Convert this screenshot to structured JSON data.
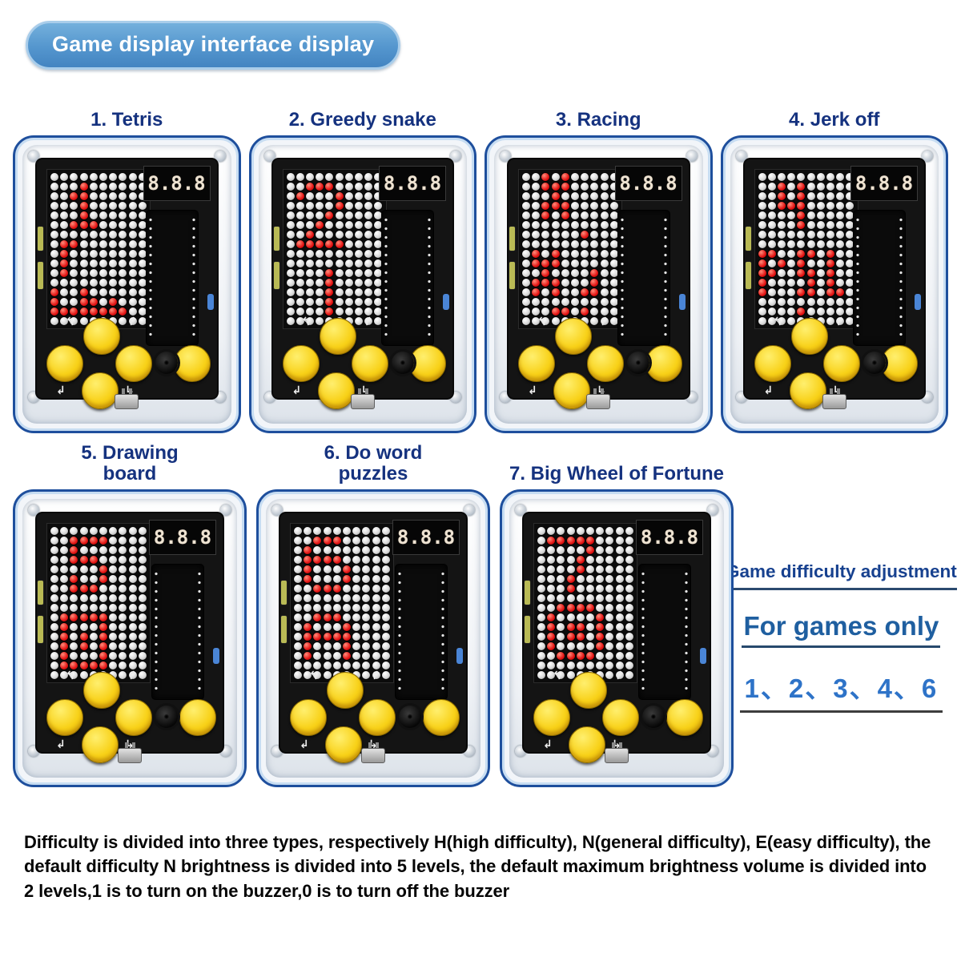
{
  "title_banner": {
    "label": "Game display interface display"
  },
  "games": [
    {
      "label": "1. Tetris",
      "display": "8.8.8",
      "matrix": [
        "..........",
        "...X......",
        "..XX......",
        "...X......",
        "...X......",
        "..XXX.....",
        "..........",
        ".XX.......",
        ".X........",
        ".X........",
        ".X........",
        "..........",
        "X..X......",
        "X..XX.X...",
        "XXXXXXXX..",
        ".........."
      ]
    },
    {
      "label": "2. Greedy snake",
      "display": "8.8.8",
      "matrix": [
        "..........",
        "..XXX.....",
        ".X...X....",
        ".....X....",
        "....X.....",
        "...X......",
        "..X.......",
        ".XXXXX....",
        "..........",
        "..........",
        "....X.....",
        "....X.....",
        "....X.....",
        "....X.....",
        "....X.....",
        ".........."
      ]
    },
    {
      "label": "3. Racing",
      "display": "8.8.8",
      "matrix": [
        "..X.X.....",
        "..XXX.....",
        "...X......",
        "..XXX.....",
        "..X.X.....",
        "..........",
        "......X...",
        "..........",
        ".X.X......",
        ".XXX......",
        "..X....X..",
        ".XXX...X..",
        ".X.X..XX..",
        "..........",
        "...XX.X...",
        ".........."
      ]
    },
    {
      "label": "4. Jerk off",
      "display": "8.8.8",
      "matrix": [
        "..........",
        "..X.X.....",
        "..X.X.....",
        "..XXX.....",
        "....X.....",
        "....X.....",
        "..........",
        "..........",
        "XX..XX.X..",
        "X.X.X..X..",
        "XX..XX.X..",
        "X....X.X..",
        "X...XX.XX.",
        "..........",
        "....X.....",
        ".........."
      ]
    },
    {
      "label": "5. Drawing\nboard",
      "display": "8.8.8",
      "matrix": [
        "..........",
        "..XXXX....",
        "..X.......",
        "..XXX.....",
        ".....X....",
        "..X..X....",
        "..XXX.....",
        "..........",
        "..........",
        ".XXXXX....",
        ".X...X....",
        ".X.X.X....",
        ".X.X.X....",
        ".X...X....",
        ".XXXXX....",
        ".........."
      ]
    },
    {
      "label": "6. Do word\npuzzles",
      "display": "8.8.8",
      "matrix": [
        "..........",
        "..XXX.....",
        ".X........",
        ".XXXX.....",
        ".X...X....",
        ".X...X....",
        "..XXX.....",
        "..........",
        "..........",
        "..XXX.....",
        ".X...X....",
        ".XXXXX....",
        ".X...X....",
        ".X...X....",
        "..........",
        ".........."
      ]
    },
    {
      "label": "7. Big Wheel of Fortune",
      "display": "8.8.8",
      "matrix": [
        "..........",
        ".XXXXX....",
        ".....X....",
        "....X.....",
        "....X.....",
        "...X......",
        "...X......",
        "..........",
        "..XXXX....",
        ".X....X...",
        ".X.XX.X...",
        ".X.XX.X...",
        ".X....X...",
        "..XXXX....",
        "..........",
        ".........."
      ]
    }
  ],
  "difficulty_note": {
    "heading": "Game difficulty adjustment",
    "subheading": "For games only",
    "games_list": "1、2、3、4、6"
  },
  "footer_note": {
    "text": "Difficulty is divided into three types, respectively H(high difficulty), N(general difficulty), E(easy difficulty), the default difficulty N brightness is divided into 5 levels, the default maximum brightness volume is divided into 2 levels,1 is to turn on the buzzer,0 is to turn off the buzzer"
  },
  "icons": {
    "arrow-up-left": "↰",
    "arrow-up-right": "↱",
    "arrow-down-left": "↲",
    "arrow-down-right": "↳"
  },
  "colors": {
    "banner_blue": "#5496ce",
    "label_navy": "#15327f",
    "heading_blue": "#17418f",
    "numbers_blue": "#2e73c8",
    "led_red": "#e41414",
    "button_yellow": "#f8d118",
    "pcb_black": "#141414",
    "frame_blue": "#1e4f9d"
  }
}
